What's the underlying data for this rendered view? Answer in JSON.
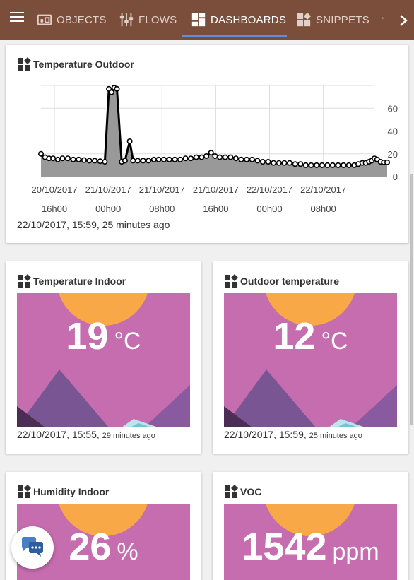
{
  "nav": {
    "tabs": [
      {
        "label": "OBJECTS",
        "icon": "objects-icon"
      },
      {
        "label": "FLOWS",
        "icon": "flows-icon"
      },
      {
        "label": "DASHBOARDS",
        "icon": "dashboards-icon",
        "active": true
      },
      {
        "label": "SNIPPETS",
        "icon": "snippets-icon"
      }
    ],
    "more_hint": "\"",
    "accent": "#5c8ee0",
    "bar_color": "#7b4e3b"
  },
  "widgets": {
    "temperature_outdoor": {
      "title": "Temperature Outdoor",
      "timestamp": "22/10/2017, 15:59, 25 minutes ago"
    },
    "temperature_indoor": {
      "title": "Temperature Indoor",
      "value": "19",
      "unit": "°C",
      "timestamp": "22/10/2017, 15:55,",
      "ago": "29 minutes ago"
    },
    "outdoor_temperature": {
      "title": "Outdoor temperature",
      "value": "12",
      "unit": "°C",
      "timestamp": "22/10/2017, 15:59,",
      "ago": "25 minutes ago"
    },
    "humidity_indoor": {
      "title": "Humidity Indoor",
      "value": "26",
      "unit": "%"
    },
    "voc": {
      "title": "VOC",
      "value": "1542",
      "unit": "ppm"
    }
  },
  "chart_data": {
    "type": "area",
    "x_tick_labels": [
      [
        "20/10/2017",
        "16h00"
      ],
      [
        "21/10/2017",
        "00h00"
      ],
      [
        "21/10/2017",
        "08h00"
      ],
      [
        "21/10/2017",
        "16h00"
      ],
      [
        "22/10/2017",
        "00h00"
      ],
      [
        "22/10/2017",
        "08h00"
      ]
    ],
    "x_hours": [
      0,
      8,
      16,
      24,
      32,
      40
    ],
    "y_ticks": [
      0,
      20,
      40,
      60
    ],
    "ylim": [
      0,
      80
    ],
    "xlim": [
      -2,
      47.5
    ],
    "grid": true,
    "line_color": "#000000",
    "fill_color": "#999999",
    "points": [
      [
        -2,
        20
      ],
      [
        -1.4,
        17
      ],
      [
        -0.8,
        16
      ],
      [
        -0.2,
        16
      ],
      [
        0.5,
        15
      ],
      [
        1.2,
        16
      ],
      [
        2,
        16
      ],
      [
        2.8,
        15
      ],
      [
        3.6,
        15
      ],
      [
        4.4,
        14.5
      ],
      [
        5.2,
        14
      ],
      [
        6,
        14
      ],
      [
        6.8,
        13.5
      ],
      [
        7.5,
        13
      ],
      [
        8.1,
        77
      ],
      [
        8.5,
        74
      ],
      [
        8.9,
        78
      ],
      [
        9.3,
        77
      ],
      [
        10,
        13
      ],
      [
        10.5,
        14
      ],
      [
        11.2,
        31
      ],
      [
        11.7,
        14
      ],
      [
        12.4,
        14
      ],
      [
        13.2,
        14
      ],
      [
        14,
        14
      ],
      [
        14.8,
        15
      ],
      [
        15.5,
        15
      ],
      [
        16.3,
        15
      ],
      [
        17.1,
        15
      ],
      [
        17.9,
        15
      ],
      [
        18.7,
        15
      ],
      [
        19.5,
        16
      ],
      [
        20.3,
        16
      ],
      [
        21.1,
        17
      ],
      [
        21.9,
        17
      ],
      [
        22.6,
        18
      ],
      [
        23.3,
        21
      ],
      [
        23.9,
        18
      ],
      [
        24.6,
        17
      ],
      [
        25.4,
        17
      ],
      [
        26.2,
        17
      ],
      [
        27,
        16
      ],
      [
        27.8,
        15
      ],
      [
        28.6,
        15
      ],
      [
        29.4,
        15
      ],
      [
        30.2,
        14
      ],
      [
        31,
        13
      ],
      [
        31.8,
        13
      ],
      [
        32.6,
        12
      ],
      [
        33.4,
        12
      ],
      [
        34.2,
        12
      ],
      [
        35,
        12
      ],
      [
        35.8,
        11
      ],
      [
        36.6,
        11
      ],
      [
        37.4,
        10
      ],
      [
        38.2,
        10
      ],
      [
        39,
        10
      ],
      [
        39.8,
        10
      ],
      [
        40.6,
        10
      ],
      [
        41.4,
        10
      ],
      [
        42.2,
        10
      ],
      [
        43,
        10
      ],
      [
        43.8,
        10
      ],
      [
        44.6,
        10
      ],
      [
        45.2,
        11
      ],
      [
        45.8,
        12
      ],
      [
        46.3,
        12
      ],
      [
        46.8,
        13
      ],
      [
        47.2,
        14
      ],
      [
        47.6,
        16
      ],
      [
        48,
        15
      ],
      [
        48.5,
        13
      ],
      [
        49,
        12.5
      ],
      [
        49.5,
        12.5
      ]
    ]
  }
}
